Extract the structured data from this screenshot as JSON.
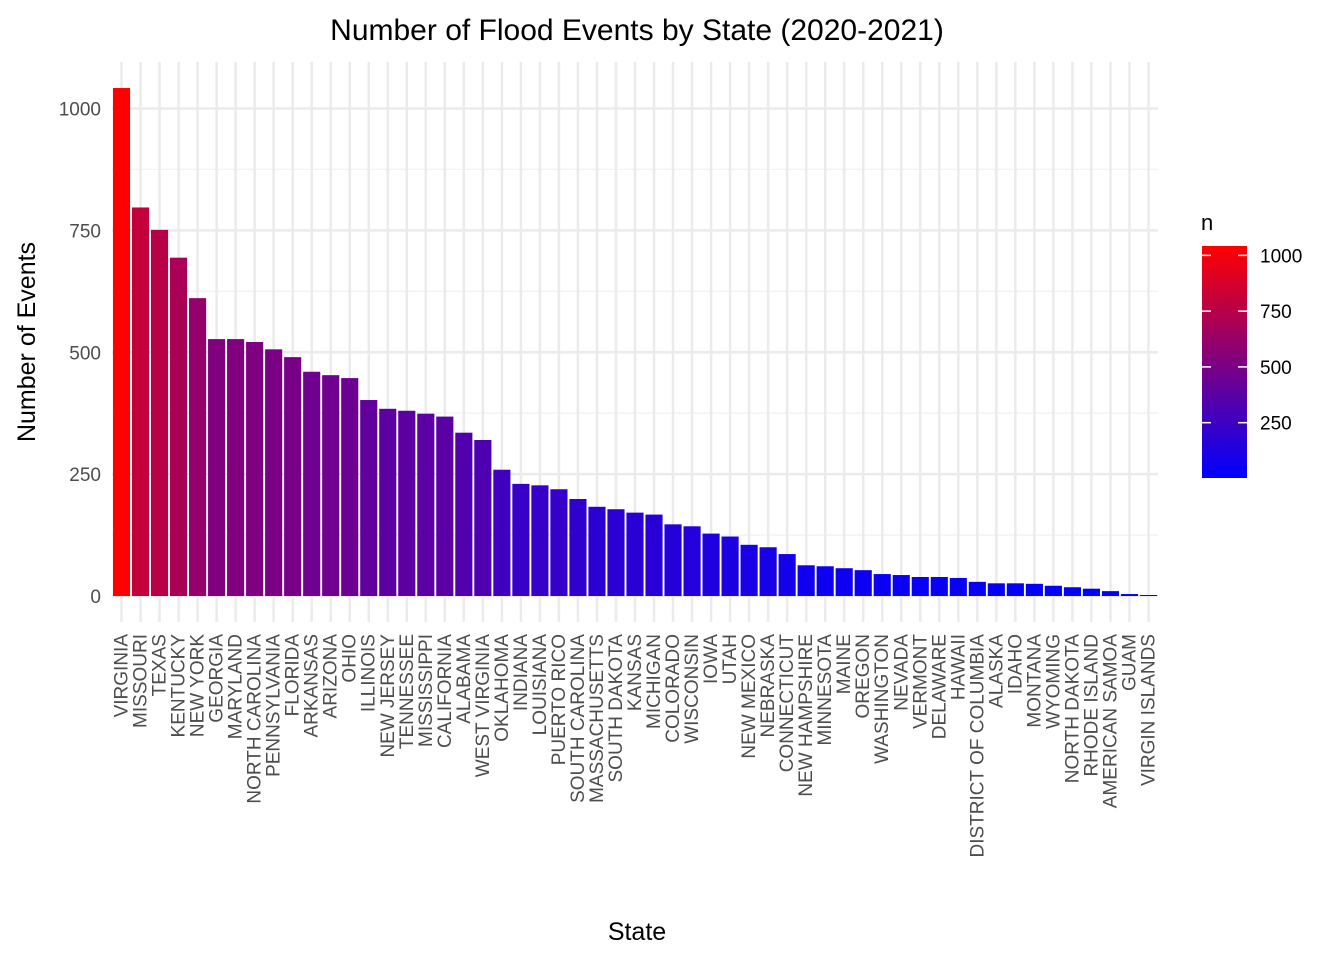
{
  "chart_data": {
    "type": "bar",
    "title": "Number of Flood Events by State (2020-2021)",
    "xlabel": "State",
    "ylabel": "Number of Events",
    "ylim": [
      -45,
      1090
    ],
    "yticks": [
      0,
      250,
      500,
      750,
      1000
    ],
    "grid": true,
    "legend_position": "right",
    "legend": {
      "title": "n",
      "type": "continuous color scale",
      "low_color": "#0000FF",
      "high_color": "#FF0000",
      "range": [
        2,
        1042
      ],
      "ticks": [
        250,
        500,
        750,
        1000
      ]
    },
    "categories": [
      "VIRGINIA",
      "MISSOURI",
      "TEXAS",
      "KENTUCKY",
      "NEW YORK",
      "GEORGIA",
      "MARYLAND",
      "NORTH CAROLINA",
      "PENNSYLVANIA",
      "FLORIDA",
      "ARKANSAS",
      "ARIZONA",
      "OHIO",
      "ILLINOIS",
      "NEW JERSEY",
      "TENNESSEE",
      "MISSISSIPPI",
      "CALIFORNIA",
      "ALABAMA",
      "WEST VIRGINIA",
      "OKLAHOMA",
      "INDIANA",
      "LOUISIANA",
      "PUERTO RICO",
      "SOUTH CAROLINA",
      "MASSACHUSETTS",
      "SOUTH DAKOTA",
      "KANSAS",
      "MICHIGAN",
      "COLORADO",
      "WISCONSIN",
      "IOWA",
      "UTAH",
      "NEW MEXICO",
      "NEBRASKA",
      "CONNECTICUT",
      "NEW HAMPSHIRE",
      "MINNESOTA",
      "MAINE",
      "OREGON",
      "WASHINGTON",
      "NEVADA",
      "VERMONT",
      "DELAWARE",
      "HAWAII",
      "DISTRICT OF COLUMBIA",
      "ALASKA",
      "IDAHO",
      "MONTANA",
      "WYOMING",
      "NORTH DAKOTA",
      "RHODE ISLAND",
      "AMERICAN SAMOA",
      "GUAM",
      "VIRGIN ISLANDS"
    ],
    "values": [
      1042,
      797,
      751,
      694,
      611,
      527,
      527,
      521,
      506,
      490,
      460,
      453,
      447,
      402,
      384,
      380,
      374,
      368,
      335,
      320,
      259,
      230,
      227,
      219,
      199,
      183,
      178,
      171,
      167,
      147,
      143,
      128,
      122,
      105,
      100,
      86,
      63,
      61,
      57,
      53,
      45,
      43,
      39,
      39,
      37,
      29,
      26,
      26,
      25,
      21,
      18,
      15,
      10,
      4,
      2
    ]
  }
}
